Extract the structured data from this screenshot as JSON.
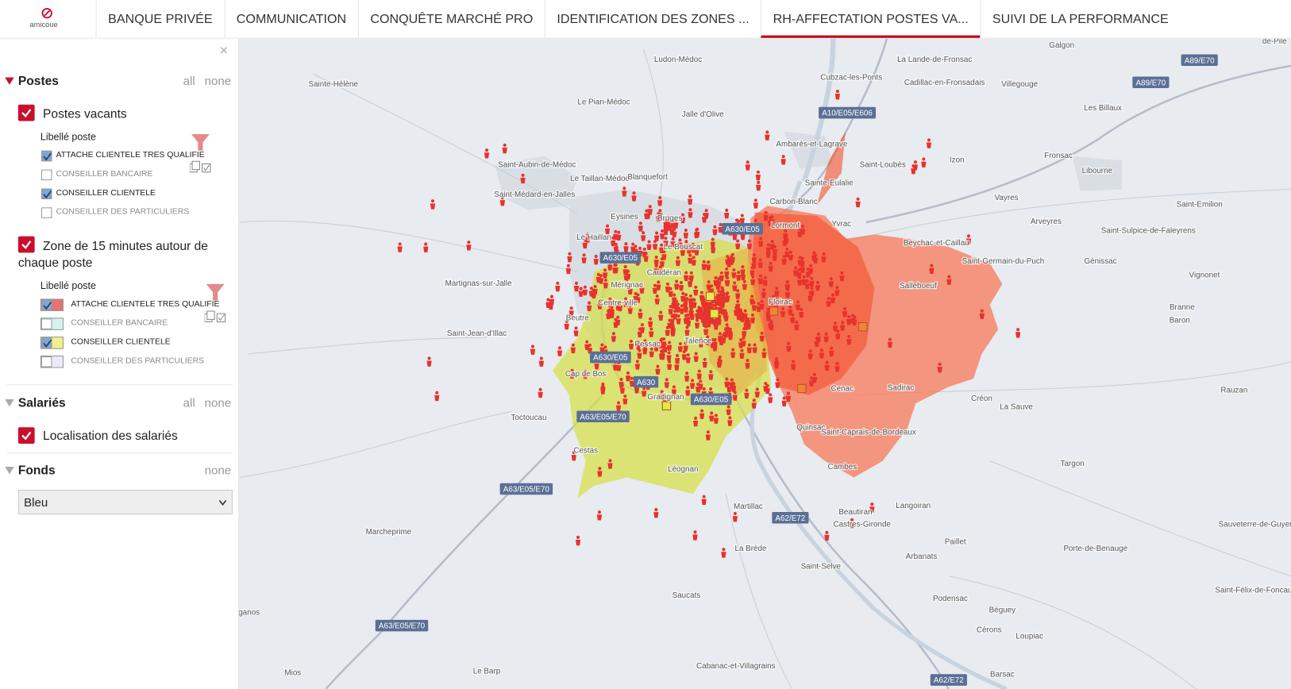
{
  "logo": "amicoue",
  "tabs": [
    "BANQUE PRIVÉE",
    "COMMUNICATION",
    "CONQUÊTE MARCHÉ PRO",
    "IDENTIFICATION DES ZONES ...",
    "RH-AFFECTATION POSTES VA...",
    "SUIVI DE LA PERFORMANCE"
  ],
  "active_tab": 4,
  "sidebar": {
    "close": "×",
    "postes": {
      "title": "Postes",
      "all": "all",
      "none": "none",
      "layers": [
        {
          "label": "Postes vacants",
          "field": "Libellé poste",
          "items": [
            "ATTACHE CLIENTELE TRES QUALIFIE",
            "CONSEILLER BANCAIRE",
            "CONSEILLER CLIENTELE",
            "CONSEILLER DES PARTICULIERS"
          ]
        },
        {
          "label": "Zone de 15 minutes autour de chaque poste",
          "field": "Libellé poste",
          "items": [
            "ATTACHE CLIENTELE TRES QUALIFIE",
            "CONSEILLER BANCAIRE",
            "CONSEILLER CLIENTELE",
            "CONSEILLER DES PARTICULIERS"
          ]
        }
      ]
    },
    "salaries": {
      "title": "Salariés",
      "all": "all",
      "none": "none",
      "layer": "Localisation des salariés"
    },
    "fonds": {
      "title": "Fonds",
      "none": "none",
      "select": "Bleu"
    }
  },
  "map": {
    "places": [
      "Ludon-Médoc",
      "Sainte-Hélène",
      "Le Pian-Médoc",
      "Jalle d'Olive",
      "Ambarès-et-Lagrave",
      "Saint-Aubin-de-Médoc",
      "Le Taillan-Médoc",
      "Blanquefort",
      "Saint-Médard-en-Jalles",
      "Saint-Loubès",
      "Sainte-Eulalie",
      "Carbon-Blanc",
      "Izon",
      "Vayres",
      "Libourne",
      "Fronsac",
      "Les Billaux",
      "Villegouge",
      "Galgon",
      "La Lande-de-Fronsac",
      "Cubzac-les-Ponts",
      "Cadillac-en-Fronsadais",
      "Saint-Emilion",
      "Arveyres",
      "Génissac",
      "Saint-Sulpice-de-Faleyrens",
      "Vignonet",
      "Branne",
      "Yvrac",
      "Beychac-et-Caillau",
      "Saint-Germain-du-Puch",
      "Salleboeuf",
      "Le Haillan",
      "Eysines",
      "Bruges",
      "Le Bouscat",
      "Lormont",
      "Mérignac",
      "Caudéran",
      "Martignas-sur-Jalle",
      "Saint-Jean-d'Illac",
      "Beutre",
      "Centre-ville",
      "Pessac",
      "Talence",
      "Gradignan",
      "Cestas",
      "Toctoucau",
      "Léognan",
      "Martillac",
      "Cap de Bos",
      "Floirac",
      "Cenac",
      "Sadirac",
      "Créon",
      "La Sauve",
      "Quinsac",
      "Saint-Caprais-de-Bordeaux",
      "Cambes",
      "Targon",
      "Langoiran",
      "Beautiran",
      "Castres-Gironde",
      "Paillet",
      "Arbanats",
      "Podensac",
      "Béguey",
      "Cérons",
      "Loupiac",
      "Saint-Selve",
      "La Brède",
      "Saucats",
      "Cabanac-et-Villagrains",
      "Le Barp",
      "Mios",
      "ganos",
      "Marcheprime",
      "Barsac",
      "Rauzan",
      "Porte-de-Benauge",
      "Sauveterre-de-Guyenne",
      "Saint-Félix-de-Foncaude",
      "Baron",
      "de-Pile"
    ],
    "roads": [
      "A89/E70",
      "A89/E70",
      "A10/E05/E606",
      "A630/E05",
      "A630/E05",
      "A630/E05",
      "A630",
      "A630/E05",
      "A63/E05/E70",
      "A63/E05/E70",
      "A62/E72",
      "A63/E05/E70",
      "A62/E72"
    ]
  }
}
